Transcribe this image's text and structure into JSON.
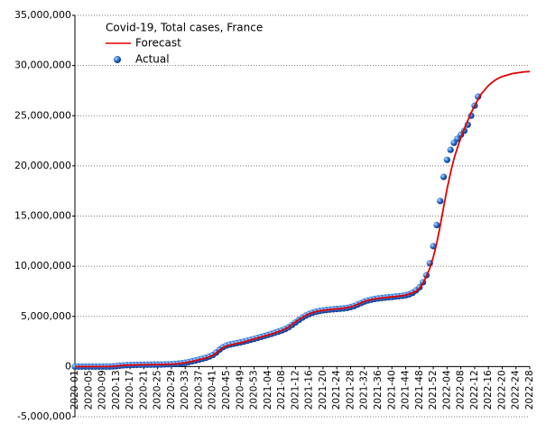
{
  "chart_data": {
    "type": "line",
    "title": "Covid-19, Total cases, France",
    "categories": [
      "2020-01",
      null,
      null,
      null,
      "2020-05",
      null,
      null,
      null,
      "2020-09",
      null,
      null,
      null,
      "2020-13",
      null,
      null,
      null,
      "2020-17",
      null,
      null,
      null,
      "2020-21",
      null,
      null,
      null,
      "2020-25",
      null,
      null,
      null,
      "2020-29",
      null,
      null,
      null,
      "2020-33",
      null,
      null,
      null,
      "2020-37",
      null,
      null,
      null,
      "2020-41",
      null,
      null,
      null,
      "2020-45",
      null,
      null,
      null,
      "2020-49",
      null,
      null,
      null,
      "2020-53",
      null,
      null,
      null,
      "2021-04",
      null,
      null,
      null,
      "2021-08",
      null,
      null,
      null,
      "2021-12",
      null,
      null,
      null,
      "2021-16",
      null,
      null,
      null,
      "2021-20",
      null,
      null,
      null,
      "2021-24",
      null,
      null,
      null,
      "2021-28",
      null,
      null,
      null,
      "2021-32",
      null,
      null,
      null,
      "2021-36",
      null,
      null,
      null,
      "2021-40",
      null,
      null,
      null,
      "2021-44",
      null,
      null,
      null,
      "2021-48",
      null,
      null,
      null,
      "2021-52",
      null,
      null,
      null,
      "2022-04",
      null,
      null,
      null,
      "2022-08",
      null,
      null,
      null,
      "2022-12",
      null,
      null,
      null,
      "2022-16",
      null,
      null,
      null,
      "2022-20",
      null,
      null,
      null,
      "2022-24",
      null,
      null,
      null,
      "2022-28"
    ],
    "series": [
      {
        "name": "Forecast",
        "color": "#e00000",
        "values": [
          0,
          0,
          0,
          0,
          0,
          0,
          0,
          0,
          0,
          0,
          10000,
          30000,
          60000,
          90000,
          120000,
          140000,
          150000,
          160000,
          170000,
          180000,
          180000,
          190000,
          190000,
          200000,
          200000,
          210000,
          220000,
          230000,
          240000,
          260000,
          290000,
          330000,
          380000,
          450000,
          520000,
          600000,
          680000,
          760000,
          850000,
          970000,
          1120000,
          1350000,
          1650000,
          1900000,
          2050000,
          2150000,
          2220000,
          2300000,
          2370000,
          2450000,
          2550000,
          2650000,
          2750000,
          2850000,
          2950000,
          3050000,
          3150000,
          3250000,
          3350000,
          3470000,
          3600000,
          3750000,
          3950000,
          4200000,
          4450000,
          4700000,
          4900000,
          5100000,
          5250000,
          5380000,
          5480000,
          5550000,
          5600000,
          5650000,
          5680000,
          5720000,
          5750000,
          5780000,
          5820000,
          5880000,
          5950000,
          6050000,
          6200000,
          6350000,
          6500000,
          6600000,
          6680000,
          6750000,
          6800000,
          6840000,
          6880000,
          6920000,
          6950000,
          6980000,
          7020000,
          7060000,
          7120000,
          7250000,
          7350000,
          7500000,
          7800000,
          8300000,
          9000000,
          9800000,
          10900000,
          12300000,
          14000000,
          15900000,
          17700000,
          19300000,
          20700000,
          21800000,
          22800000,
          23700000,
          24500000,
          25300000,
          26000000,
          26600000,
          27200000,
          27600000,
          28000000,
          28300000,
          28550000,
          28750000,
          28900000,
          29000000,
          29100000,
          29200000,
          29250000,
          29300000,
          29350000,
          29380000,
          29400000
        ]
      },
      {
        "name": "Actual",
        "color": "#1f5fbf",
        "values": [
          0,
          0,
          0,
          0,
          0,
          0,
          0,
          0,
          0,
          0,
          5000,
          20000,
          50000,
          90000,
          120000,
          140000,
          150000,
          160000,
          170000,
          180000,
          180000,
          190000,
          190000,
          200000,
          200000,
          210000,
          220000,
          230000,
          240000,
          260000,
          290000,
          330000,
          380000,
          450000,
          530000,
          610000,
          690000,
          780000,
          880000,
          1000000,
          1150000,
          1400000,
          1700000,
          1950000,
          2100000,
          2200000,
          2270000,
          2340000,
          2410000,
          2490000,
          2580000,
          2670000,
          2760000,
          2860000,
          2960000,
          3060000,
          3160000,
          3260000,
          3370000,
          3480000,
          3600000,
          3740000,
          3920000,
          4150000,
          4400000,
          4650000,
          4880000,
          5080000,
          5240000,
          5370000,
          5470000,
          5540000,
          5600000,
          5640000,
          5680000,
          5710000,
          5740000,
          5770000,
          5800000,
          5850000,
          5930000,
          6030000,
          6180000,
          6330000,
          6480000,
          6590000,
          6670000,
          6740000,
          6790000,
          6830000,
          6870000,
          6910000,
          6940000,
          6980000,
          7010000,
          7050000,
          7110000,
          7200000,
          7350000,
          7600000,
          7900000,
          8400000,
          9100000,
          10300000,
          12000000,
          14100000,
          16500000,
          18900000,
          20600000,
          21600000,
          22300000,
          22700000,
          23100000,
          23500000,
          24100000,
          25000000,
          26000000,
          26900000,
          null,
          null,
          null,
          null,
          null,
          null,
          null,
          null,
          null,
          null,
          null,
          null,
          null,
          null,
          null
        ]
      }
    ],
    "ylim": [
      -5000000,
      35000000
    ],
    "yticks": [
      {
        "value": -5000000,
        "label": "-5,000,000"
      },
      0,
      {
        "value": 5000000,
        "label": "5,000,000"
      },
      {
        "value": 10000000,
        "label": "10,000,000"
      },
      {
        "value": 15000000,
        "label": "15,000,000"
      },
      {
        "value": 20000000,
        "label": "20,000,000"
      },
      {
        "value": 25000000,
        "label": "25,000,000"
      },
      {
        "value": 30000000,
        "label": "30,000,000"
      },
      {
        "value": 35000000,
        "label": "35,000,000"
      }
    ],
    "grid": true
  }
}
